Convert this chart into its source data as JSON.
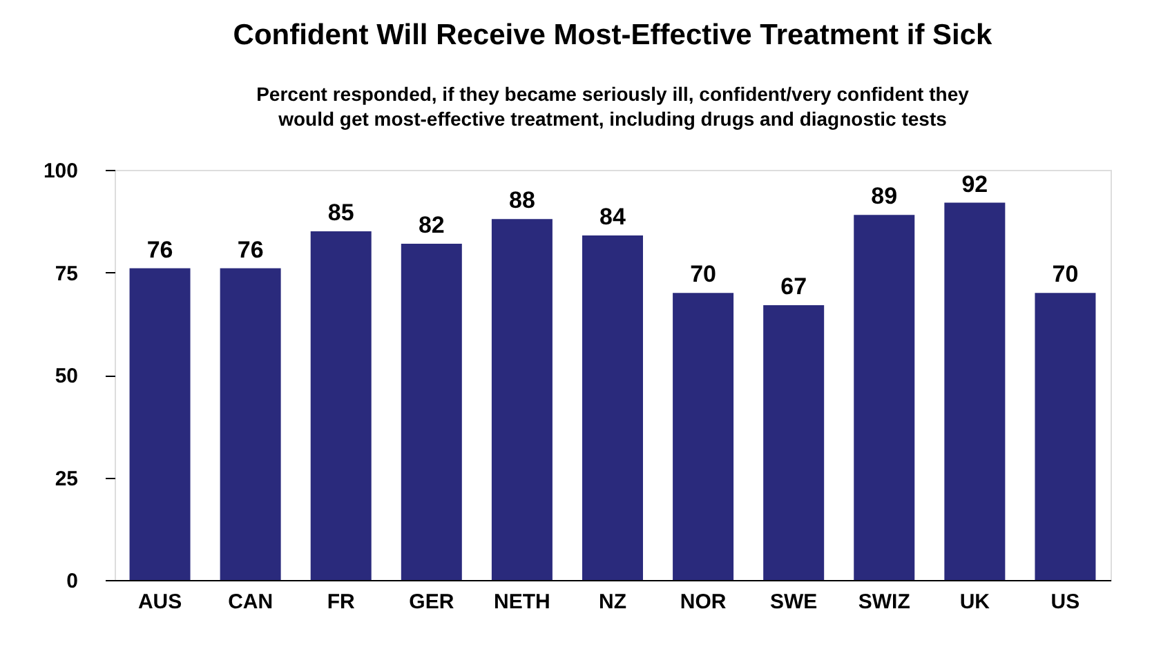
{
  "chart_data": {
    "type": "bar",
    "title": "Confident Will Receive Most-Effective Treatment if Sick",
    "subtitle": "Percent responded, if they became seriously ill, confident/very confident they\nwould get most-effective treatment, including drugs and diagnostic tests",
    "categories": [
      "AUS",
      "CAN",
      "FR",
      "GER",
      "NETH",
      "NZ",
      "NOR",
      "SWE",
      "SWIZ",
      "UK",
      "US"
    ],
    "values": [
      76,
      76,
      85,
      82,
      88,
      84,
      70,
      67,
      89,
      92,
      70
    ],
    "color": "#2a2a7c",
    "ylim": [
      0,
      100
    ],
    "yticks": [
      0,
      25,
      50,
      75,
      100
    ],
    "grid": false,
    "data_labels": true
  }
}
